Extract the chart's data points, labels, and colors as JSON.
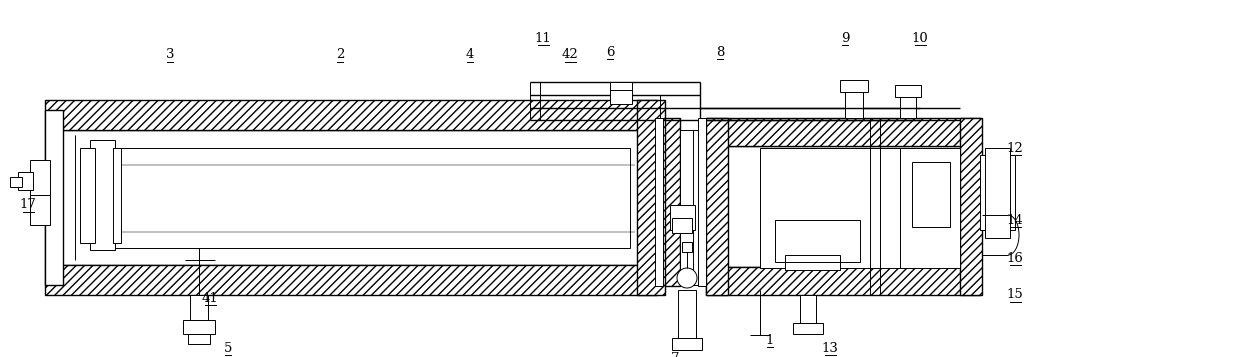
{
  "bg_color": "#ffffff",
  "line_color": "#000000",
  "fig_width": 12.38,
  "fig_height": 3.57,
  "dpi": 100
}
